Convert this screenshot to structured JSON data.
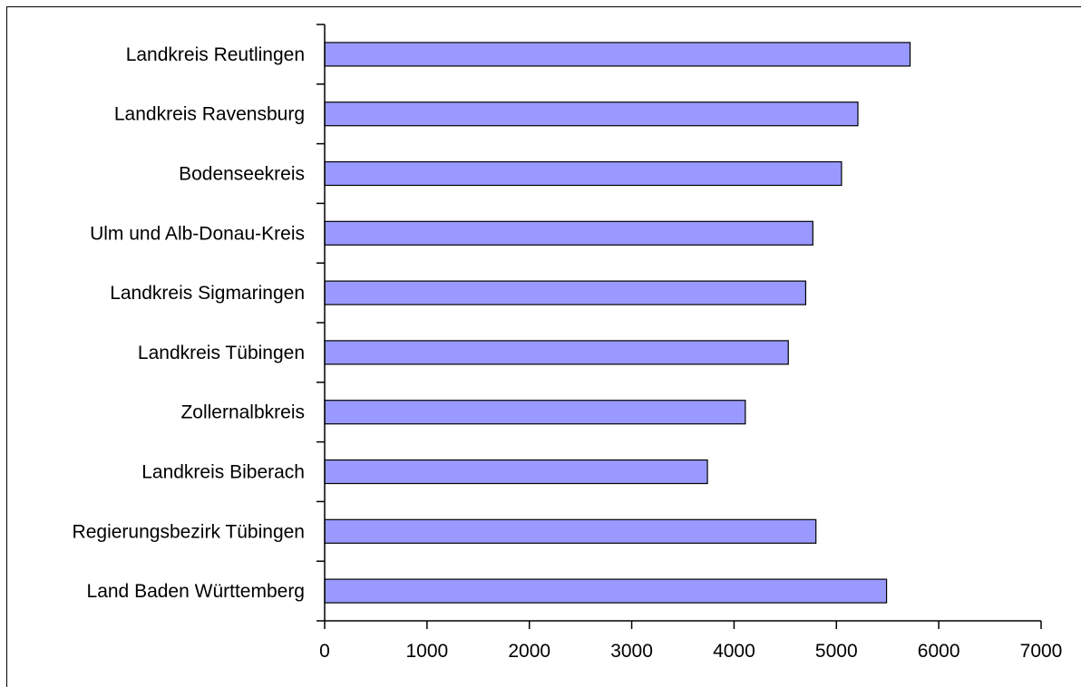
{
  "chart_data": {
    "type": "bar",
    "orientation": "horizontal",
    "categories": [
      "Landkreis Reutlingen",
      "Landkreis Ravensburg",
      "Bodenseekreis",
      "Ulm und Alb-Donau-Kreis",
      "Landkreis Sigmaringen",
      "Landkreis Tübingen",
      "Zollernalbkreis",
      "Landkreis Biberach",
      "Regierungsbezirk Tübingen",
      "Land Baden Württemberg"
    ],
    "values": [
      5720,
      5210,
      5050,
      4770,
      4700,
      4530,
      4110,
      3740,
      4800,
      5490
    ],
    "xlim": [
      0,
      7000
    ],
    "xticks": [
      "0",
      "1000",
      "2000",
      "3000",
      "4000",
      "5000",
      "6000",
      "7000"
    ],
    "title": "",
    "xlabel": "",
    "ylabel": "",
    "grid": false,
    "legend": "none",
    "bar_color": "#9999ff",
    "bar_edge_color": "#000000"
  }
}
